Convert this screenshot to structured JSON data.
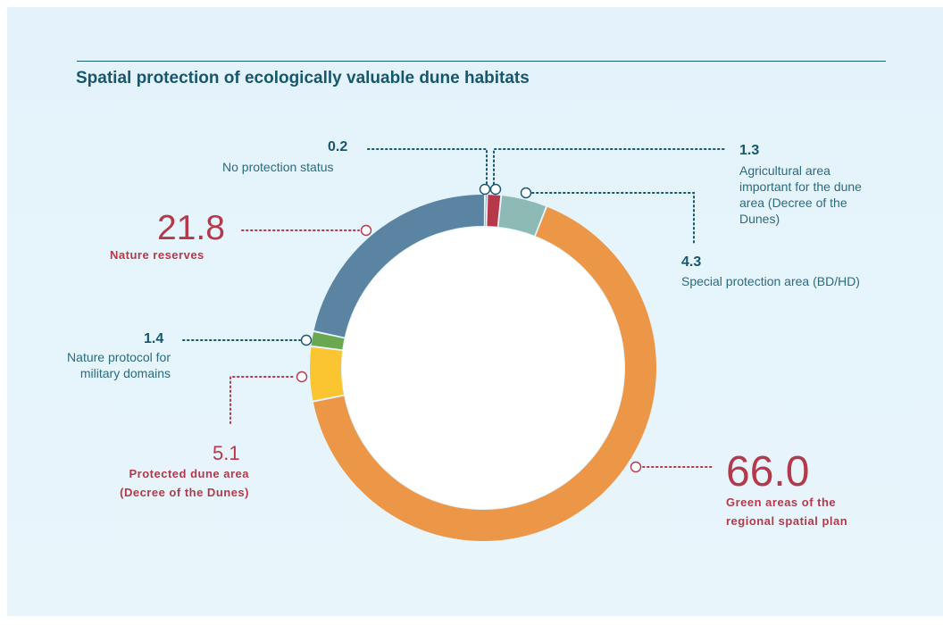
{
  "title": "Spatial protection of ecologically valuable dune habitats",
  "colors": {
    "teal": "#17576e",
    "red": "#b23a4b",
    "background": "#e6f4fb"
  },
  "chart_data": {
    "type": "pie",
    "donut": true,
    "title": "Spatial protection of ecologically valuable dune habitats",
    "slices": [
      {
        "label": "No protection status",
        "value": 0.2,
        "value_label": "0.2",
        "color": "#17576e"
      },
      {
        "label": "Agricultural area important for the dune area (Decree of the Dunes)",
        "value": 1.3,
        "value_label": "1.3",
        "color": "#b5394a"
      },
      {
        "label": "Special protection area (BD/HD)",
        "value": 4.3,
        "value_label": "4.3",
        "color": "#8dbab4"
      },
      {
        "label": "Green areas of the regional spatial plan",
        "value": 66.0,
        "value_label": "66.0",
        "color": "#ec9648"
      },
      {
        "label": "Protected dune area (Decree of the Dunes)",
        "value": 5.1,
        "value_label": "5.1",
        "color": "#fbc531"
      },
      {
        "label": "Nature protocol for military domains",
        "value": 1.4,
        "value_label": "1.4",
        "color": "#6aa84f"
      },
      {
        "label": "Nature reserves",
        "value": 21.8,
        "value_label": "21.8",
        "color": "#5b84a3"
      }
    ]
  },
  "labels": {
    "no_protection": {
      "value": "0.2",
      "desc": "No protection status"
    },
    "agricultural": {
      "value": "1.3",
      "desc": [
        "Agricultural area",
        "important for the dune",
        "area (Decree of the",
        "Dunes)"
      ]
    },
    "special": {
      "value": "4.3",
      "desc": "Special protection area (BD/HD)"
    },
    "reserves": {
      "value": "21.8",
      "desc": "Nature reserves"
    },
    "military": {
      "value": "1.4",
      "desc": [
        "Nature protocol for",
        "military domains"
      ]
    },
    "protected": {
      "value": "5.1",
      "desc": [
        "Protected dune area",
        "(Decree of the Dunes)"
      ]
    },
    "green": {
      "value": "66.0",
      "desc": [
        "Green areas of the",
        "regional spatial plan"
      ]
    }
  }
}
